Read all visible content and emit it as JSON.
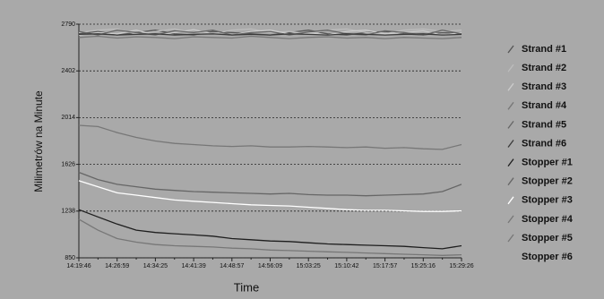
{
  "chart_data": {
    "type": "line",
    "y_label": "Milimetrów na Minute",
    "x_label": "Time",
    "categories": [
      "14:19:46",
      null,
      "14:26:59",
      null,
      "14:34:25",
      null,
      "14:41:39",
      null,
      "14:48:57",
      null,
      "14:56:09",
      null,
      "15:03:25",
      null,
      "15:10:42",
      null,
      "15:17:57",
      null,
      "15:25:16",
      null,
      "15:29:26"
    ],
    "ylim": [
      850,
      2790
    ],
    "yticks": [
      850,
      1238,
      1626,
      2014,
      2402,
      2790
    ],
    "grid": true,
    "series": [
      {
        "name": "Strand #1",
        "color": "#555555",
        "values": [
          2710,
          2730,
          2700,
          2720,
          2740,
          2710,
          2700,
          2730,
          2720,
          2710,
          2700,
          2720,
          2740,
          2710,
          2700,
          2720,
          2730,
          2710,
          2700,
          2720,
          2710
        ]
      },
      {
        "name": "Strand #2",
        "color": "#bdbdbd",
        "values": [
          2720,
          2740,
          2750,
          2710,
          2730,
          2750,
          2720,
          2710,
          2740,
          2750,
          2720,
          2730,
          2710,
          2740,
          2750,
          2720,
          2710,
          2740,
          2750,
          2730,
          2740
        ]
      },
      {
        "name": "Strand #3",
        "color": "#cccccc",
        "values": [
          2700,
          2720,
          2710,
          2740,
          2700,
          2720,
          2745,
          2710,
          2700,
          2730,
          2740,
          2710,
          2720,
          2700,
          2730,
          2740,
          2710,
          2720,
          2735,
          2700,
          2720
        ]
      },
      {
        "name": "Strand #4",
        "color": "#777777",
        "values": [
          2680,
          2690,
          2675,
          2685,
          2680,
          2670,
          2685,
          2680,
          2675,
          2690,
          2680,
          2670,
          2680,
          2685,
          2675,
          2680,
          2670,
          2680,
          2675,
          2670,
          2680
        ]
      },
      {
        "name": "Strand #5",
        "color": "#666666",
        "values": [
          2730,
          2700,
          2740,
          2720,
          2700,
          2735,
          2720,
          2740,
          2700,
          2720,
          2730,
          2700,
          2725,
          2740,
          2710,
          2700,
          2735,
          2720,
          2700,
          2740,
          2710
        ]
      },
      {
        "name": "Strand #6",
        "color": "#3a3a3a",
        "values": [
          2705,
          2710,
          2700,
          2705,
          2710,
          2700,
          2705,
          2710,
          2700,
          2705,
          2700,
          2710,
          2705,
          2700,
          2710,
          2705,
          2700,
          2705,
          2710,
          2700,
          2705
        ]
      },
      {
        "name": "Stopper #1",
        "color": "#1e1e1e",
        "values": [
          1250,
          1190,
          1130,
          1080,
          1060,
          1050,
          1040,
          1030,
          1010,
          1000,
          990,
          985,
          975,
          965,
          960,
          955,
          950,
          945,
          935,
          925,
          950
        ]
      },
      {
        "name": "Stopper #2",
        "color": "#666666",
        "values": [
          1560,
          1500,
          1460,
          1440,
          1420,
          1410,
          1400,
          1395,
          1390,
          1385,
          1380,
          1385,
          1375,
          1370,
          1370,
          1365,
          1370,
          1375,
          1380,
          1400,
          1460
        ]
      },
      {
        "name": "Stopper #3",
        "color": "#ffffff",
        "values": [
          1490,
          1440,
          1390,
          1370,
          1350,
          1330,
          1320,
          1310,
          1300,
          1290,
          1285,
          1280,
          1270,
          1260,
          1250,
          1245,
          1245,
          1240,
          1235,
          1235,
          1240
        ]
      },
      {
        "name": "Stopper #4",
        "color": "#777777",
        "values": [
          1950,
          1940,
          1890,
          1850,
          1820,
          1800,
          1790,
          1780,
          1775,
          1780,
          1770,
          1770,
          1775,
          1770,
          1765,
          1770,
          1760,
          1765,
          1755,
          1750,
          1790
        ]
      },
      {
        "name": "Stopper #5",
        "color": "#777777",
        "values": [
          1170,
          1080,
          1010,
          980,
          960,
          950,
          945,
          940,
          930,
          925,
          915,
          910,
          905,
          900,
          895,
          890,
          885,
          880,
          875,
          870,
          875
        ]
      },
      {
        "name": "Stopper #6",
        "color": "#ffffff",
        "values": [
          null,
          null,
          null,
          null,
          null,
          null,
          null,
          null,
          null,
          null,
          null,
          null,
          null,
          null,
          null,
          null,
          null,
          null,
          null,
          null,
          null
        ]
      }
    ]
  }
}
